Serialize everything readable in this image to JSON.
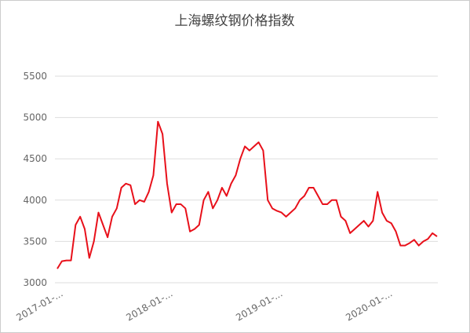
{
  "chart_data": {
    "type": "line",
    "title": "上海螺纹钢价格指数",
    "categories": [
      "2017-01-...",
      null,
      null,
      null,
      null,
      null,
      null,
      null,
      null,
      null,
      null,
      null,
      null,
      null,
      null,
      null,
      null,
      null,
      null,
      null,
      null,
      null,
      null,
      null,
      "2018-01-...",
      null,
      null,
      null,
      null,
      null,
      null,
      null,
      null,
      null,
      null,
      null,
      null,
      null,
      null,
      null,
      null,
      null,
      null,
      null,
      null,
      null,
      null,
      null,
      "2019-01-...",
      null,
      null,
      null,
      null,
      null,
      null,
      null,
      null,
      null,
      null,
      null,
      null,
      null,
      null,
      null,
      null,
      null,
      null,
      null,
      null,
      null,
      null,
      null,
      "2020-01-...",
      null,
      null,
      null,
      null,
      null,
      null,
      null,
      null,
      null,
      null,
      null
    ],
    "series": [
      {
        "color": "#e8101a",
        "values": [
          3170,
          3260,
          3270,
          3270,
          3700,
          3800,
          3650,
          3300,
          3500,
          3850,
          3700,
          3550,
          3800,
          3900,
          4150,
          4200,
          4180,
          3950,
          4000,
          3980,
          4100,
          4300,
          4950,
          4800,
          4200,
          3850,
          3950,
          3950,
          3900,
          3620,
          3650,
          3700,
          4000,
          4100,
          3900,
          4000,
          4150,
          4050,
          4200,
          4300,
          4500,
          4650,
          4600,
          4650,
          4700,
          4600,
          4000,
          3900,
          3870,
          3850,
          3800,
          3850,
          3900,
          4000,
          4050,
          4150,
          4150,
          4050,
          3950,
          3950,
          4000,
          4000,
          3800,
          3750,
          3600,
          3650,
          3700,
          3750,
          3680,
          3750,
          4100,
          3850,
          3750,
          3720,
          3620,
          3450,
          3450,
          3480,
          3520,
          3450,
          3500,
          3530,
          3600,
          3560
        ]
      }
    ],
    "ylim": [
      3000,
      5500
    ],
    "yticks": [
      3000,
      3500,
      4000,
      4500,
      5000,
      5500
    ],
    "grid": true
  }
}
